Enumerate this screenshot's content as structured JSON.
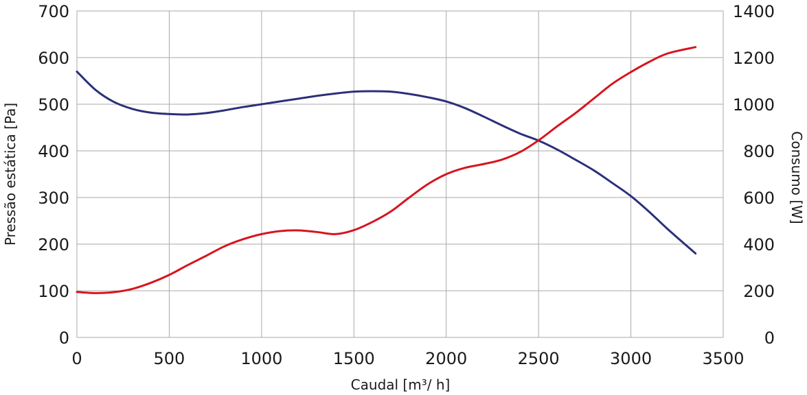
{
  "chart_data": {
    "type": "line",
    "xlabel": "Caudal [m³/ h]",
    "ylabel_left": "Pressão estática [Pa]",
    "ylabel_right": "Consumo [W]",
    "xlim": [
      0,
      3500
    ],
    "ylim_left": [
      0,
      700
    ],
    "ylim_right": [
      0,
      1400
    ],
    "x_ticks": [
      "0",
      "500",
      "1000",
      "1500",
      "2000",
      "2500",
      "3000",
      "3500"
    ],
    "y_ticks_left": [
      "0",
      "100",
      "200",
      "300",
      "400",
      "500",
      "600",
      "700"
    ],
    "y_ticks_right": [
      "0",
      "200",
      "400",
      "600",
      "800",
      "1000",
      "1200",
      "1400"
    ],
    "grid": true,
    "series": [
      {
        "axis": "left",
        "color": "#2b2f7a",
        "x": [
          0,
          100,
          200,
          300,
          400,
          500,
          600,
          700,
          800,
          900,
          1000,
          1100,
          1200,
          1300,
          1400,
          1500,
          1600,
          1700,
          1800,
          1900,
          2000,
          2100,
          2200,
          2300,
          2400,
          2500,
          2600,
          2700,
          2800,
          2900,
          3000,
          3100,
          3200,
          3350
        ],
        "values": [
          570,
          531,
          505,
          490,
          482,
          479,
          478,
          481,
          487,
          494,
          500,
          506,
          512,
          518,
          523,
          527,
          528,
          527,
          522,
          515,
          506,
          492,
          474,
          455,
          437,
          422,
          403,
          381,
          358,
          331,
          303,
          269,
          232,
          180
        ]
      },
      {
        "axis": "right",
        "color": "#d7141e",
        "x": [
          0,
          100,
          200,
          300,
          400,
          500,
          600,
          700,
          800,
          900,
          1000,
          1100,
          1200,
          1300,
          1400,
          1500,
          1600,
          1700,
          1800,
          1900,
          2000,
          2100,
          2200,
          2300,
          2400,
          2500,
          2600,
          2700,
          2800,
          2900,
          3000,
          3100,
          3200,
          3350
        ],
        "values": [
          195,
          190,
          194,
          208,
          234,
          268,
          310,
          350,
          391,
          421,
          443,
          456,
          459,
          452,
          443,
          460,
          495,
          540,
          600,
          657,
          700,
          727,
          743,
          762,
          795,
          845,
          905,
          962,
          1025,
          1088,
          1138,
          1182,
          1218,
          1245
        ]
      }
    ]
  }
}
